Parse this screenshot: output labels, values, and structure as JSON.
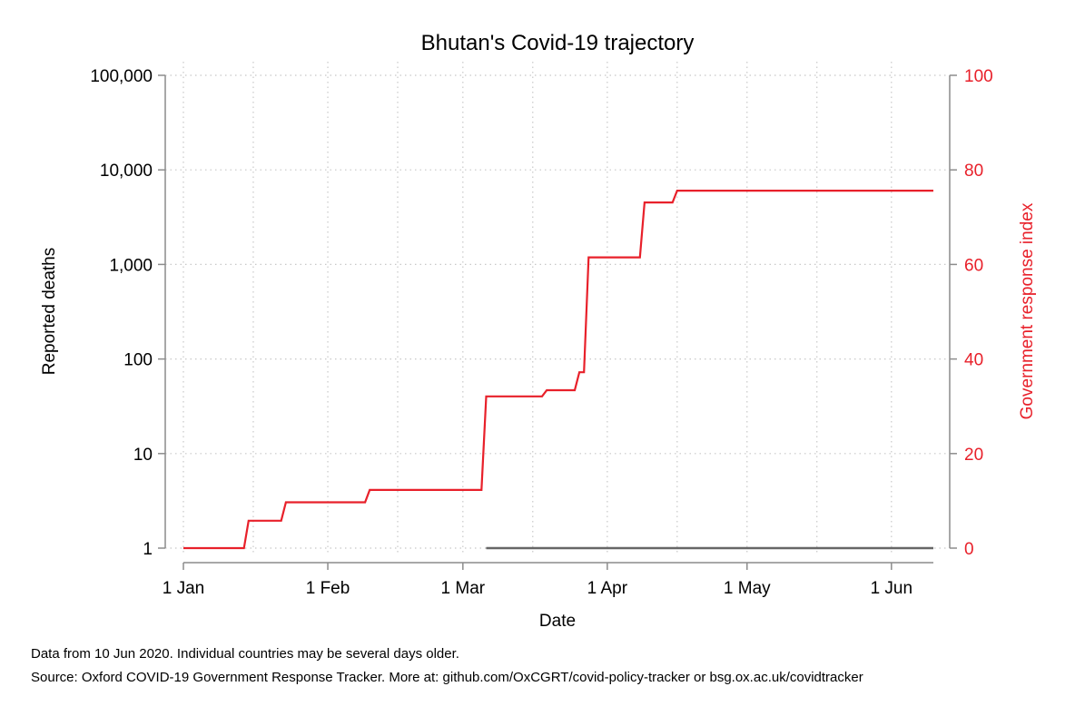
{
  "chart_data": {
    "type": "line",
    "title": "Bhutan's Covid-19 trajectory",
    "xlabel": "Date",
    "ylabel_left": "Reported deaths",
    "ylabel_right": "Government response index",
    "left_axis": {
      "scale": "log",
      "ylim": [
        1,
        100000
      ],
      "tick_values": [
        1,
        10,
        100,
        1000,
        10000,
        100000
      ],
      "tick_labels": [
        "1",
        "10",
        "100",
        "1,000",
        "10,000",
        "100,000"
      ]
    },
    "right_axis": {
      "scale": "linear",
      "ylim": [
        0,
        100
      ],
      "tick_values": [
        0,
        20,
        40,
        60,
        80,
        100
      ],
      "tick_labels": [
        "0",
        "20",
        "40",
        "60",
        "80",
        "100"
      ],
      "color": "#e8202a"
    },
    "x_axis": {
      "tick_dates": [
        "2020-01-01",
        "2020-02-01",
        "2020-03-01",
        "2020-04-01",
        "2020-05-01",
        "2020-06-01"
      ],
      "tick_labels": [
        "1 Jan",
        "1 Feb",
        "1 Mar",
        "1 Apr",
        "1 May",
        "1 Jun"
      ]
    },
    "grid": true,
    "series": [
      {
        "axis": "right",
        "color": "#e8202a",
        "step": true,
        "points": [
          {
            "x": "2020-01-01",
            "y": 0
          },
          {
            "x": "2020-01-14",
            "y": 0
          },
          {
            "x": "2020-01-15",
            "y": 5.8
          },
          {
            "x": "2020-01-22",
            "y": 5.8
          },
          {
            "x": "2020-01-23",
            "y": 9.7
          },
          {
            "x": "2020-02-09",
            "y": 9.7
          },
          {
            "x": "2020-02-10",
            "y": 12.3
          },
          {
            "x": "2020-03-05",
            "y": 12.3
          },
          {
            "x": "2020-03-06",
            "y": 32.1
          },
          {
            "x": "2020-03-18",
            "y": 32.1
          },
          {
            "x": "2020-03-19",
            "y": 33.4
          },
          {
            "x": "2020-03-25",
            "y": 33.4
          },
          {
            "x": "2020-03-26",
            "y": 37.2
          },
          {
            "x": "2020-03-27",
            "y": 37.2
          },
          {
            "x": "2020-03-28",
            "y": 61.5
          },
          {
            "x": "2020-04-08",
            "y": 61.5
          },
          {
            "x": "2020-04-09",
            "y": 73.1
          },
          {
            "x": "2020-04-15",
            "y": 73.1
          },
          {
            "x": "2020-04-16",
            "y": 75.6
          },
          {
            "x": "2020-06-10",
            "y": 75.6
          }
        ]
      },
      {
        "axis": "left",
        "color": "#666666",
        "step": true,
        "points": [
          {
            "x": "2020-03-06",
            "y": 1
          },
          {
            "x": "2020-06-10",
            "y": 1
          }
        ]
      }
    ]
  },
  "notes": {
    "line1": "Data from 10 Jun 2020. Individual countries may be several days older.",
    "line2": "Source: Oxford COVID-19 Government Response Tracker. More at: github.com/OxCGRT/covid-policy-tracker or bsg.ox.ac.uk/covidtracker"
  }
}
